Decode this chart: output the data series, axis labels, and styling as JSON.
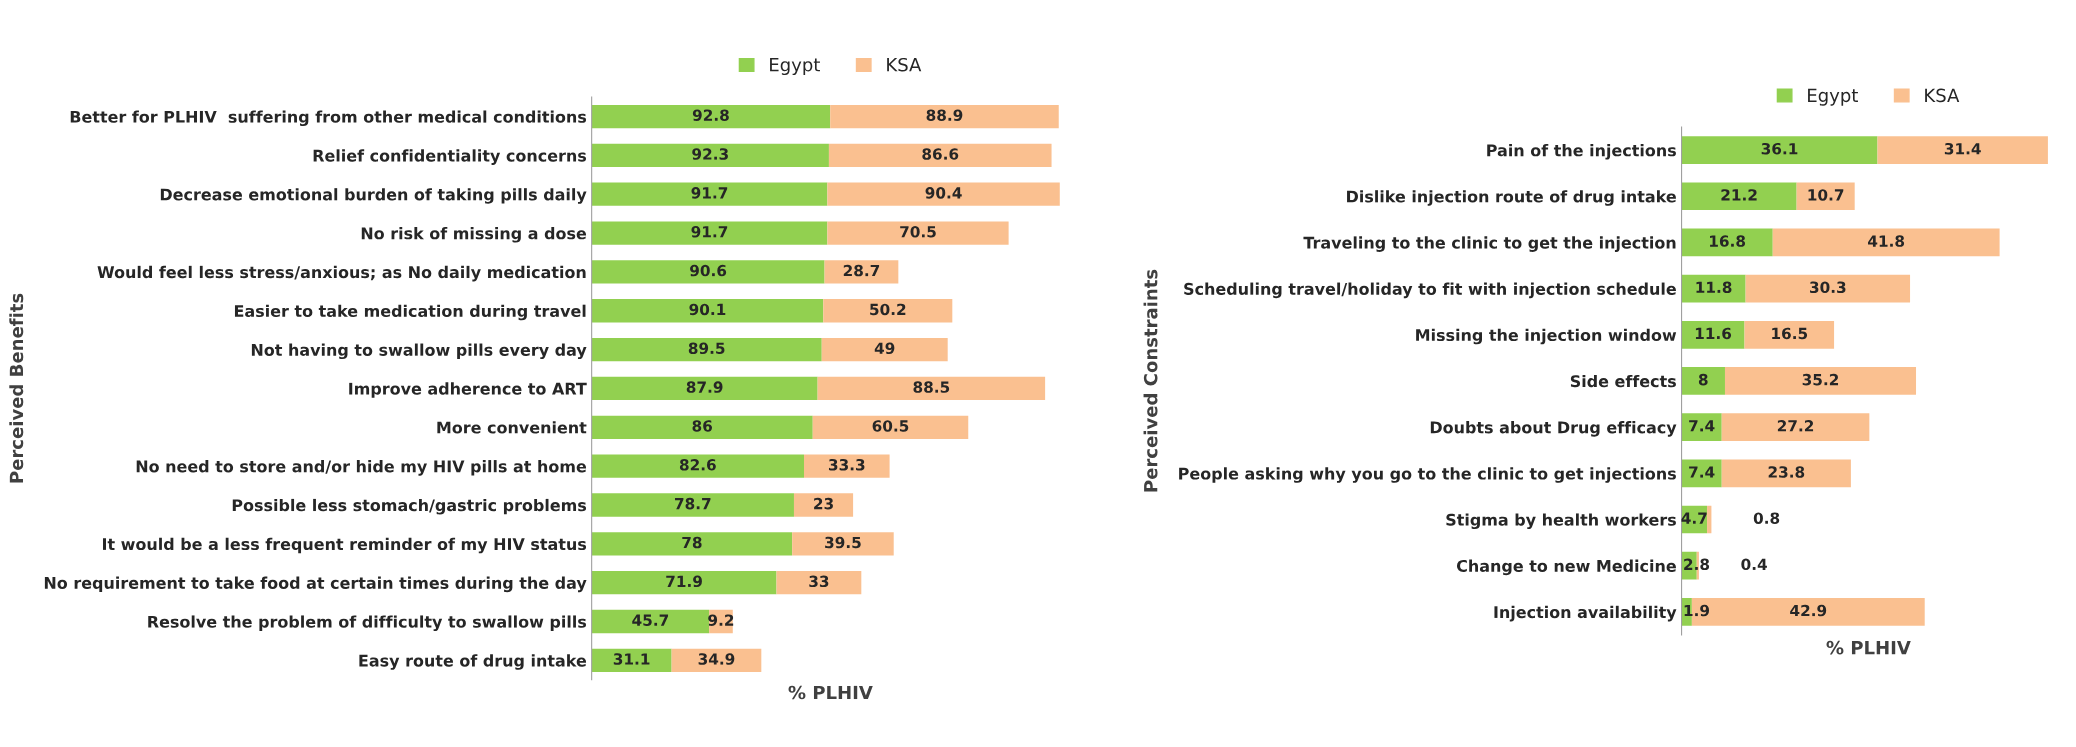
{
  "chart_data": [
    {
      "type": "bar",
      "orientation": "horizontal",
      "stacked": true,
      "ylabel": "Perceived Benefits",
      "xlabel": "% PLHIV",
      "legend": "top",
      "tick_labels": "y",
      "data_labels": true,
      "categories": [
        "Better for PLHIV  suffering from other medical conditions",
        "Relief confidentiality concerns",
        "Decrease emotional burden of taking pills daily",
        "No risk of missing a dose",
        "Would feel less stress/anxious; as No daily medication",
        "Easier to take medication during travel",
        "Not having to swallow pills every day",
        "Improve adherence to ART",
        "More convenient",
        "No need to store and/or hide my HIV pills at home",
        "Possible less stomach/gastric problems",
        "It would be a less frequent reminder of my HIV status",
        "No requirement to take food at certain times during the day",
        "Resolve the problem of difficulty to swallow pills",
        "Easy route of drug intake"
      ],
      "series": [
        {
          "name": "Egypt",
          "color": "#92d050",
          "values": [
            92.8,
            92.3,
            91.7,
            91.7,
            90.6,
            90.1,
            89.5,
            87.9,
            86,
            82.6,
            78.7,
            78,
            71.9,
            45.7,
            31.1
          ]
        },
        {
          "name": "KSA",
          "color": "#fac090",
          "values": [
            88.9,
            86.6,
            90.4,
            70.5,
            28.7,
            50.2,
            49,
            88.5,
            60.5,
            33.3,
            23,
            39.5,
            33,
            9.2,
            34.9
          ]
        }
      ]
    },
    {
      "type": "bar",
      "orientation": "horizontal",
      "stacked": true,
      "ylabel": "Perceived Constraints",
      "xlabel": "% PLHIV",
      "legend": "top",
      "tick_labels": "y",
      "data_labels": true,
      "categories": [
        "Pain of the injections",
        "Dislike injection route of drug intake",
        "Traveling to the clinic to get the injection",
        "Scheduling travel/holiday to fit with injection schedule",
        "Missing the injection window",
        "Side effects",
        "Doubts about Drug efficacy",
        "People asking why you go to the clinic to get injections",
        "Stigma by health workers",
        "Change to new Medicine",
        "Injection availability"
      ],
      "series": [
        {
          "name": "Egypt",
          "color": "#92d050",
          "values": [
            36.1,
            21.2,
            16.8,
            11.8,
            11.6,
            8,
            7.4,
            7.4,
            4.7,
            2.8,
            1.9
          ]
        },
        {
          "name": "KSA",
          "color": "#fac090",
          "values": [
            31.4,
            10.7,
            41.8,
            30.3,
            16.5,
            35.2,
            27.2,
            23.8,
            0.8,
            0.4,
            42.9
          ]
        }
      ]
    }
  ]
}
